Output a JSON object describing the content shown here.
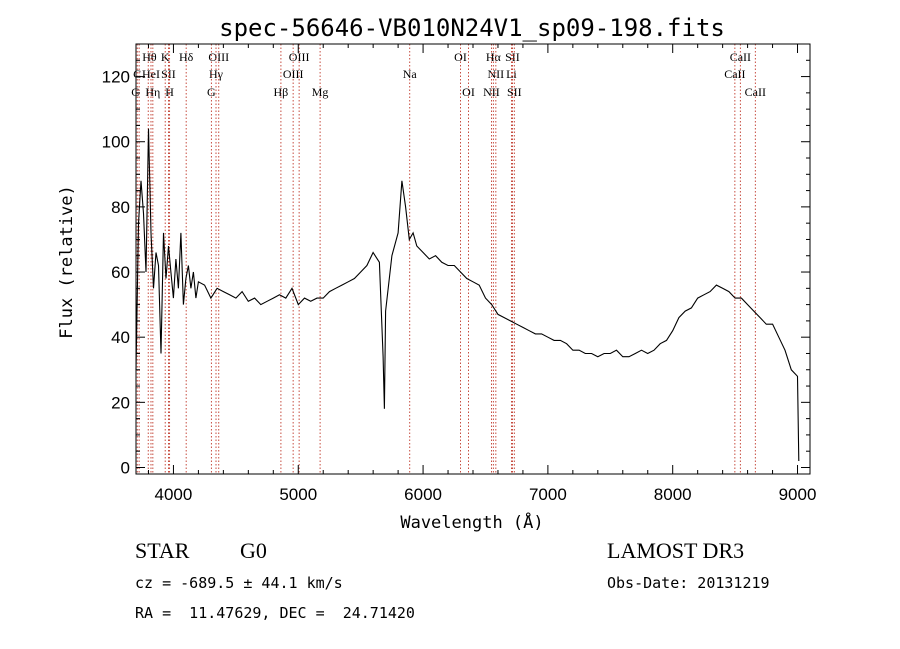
{
  "chart_data": {
    "type": "line",
    "title": "spec-56646-VB010N24V1_sp09-198.fits",
    "xlabel": "Wavelength (Å)",
    "ylabel": "Flux (relative)",
    "xlim": [
      3700,
      9100
    ],
    "ylim": [
      -2,
      130
    ],
    "x_ticks": [
      4000,
      5000,
      6000,
      7000,
      8000,
      9000
    ],
    "y_ticks": [
      0,
      20,
      40,
      60,
      80,
      100,
      120
    ],
    "series": [
      {
        "name": "spectrum",
        "x": [
          3700,
          3720,
          3740,
          3760,
          3780,
          3800,
          3820,
          3840,
          3860,
          3880,
          3900,
          3920,
          3940,
          3960,
          3980,
          4000,
          4020,
          4040,
          4060,
          4080,
          4100,
          4120,
          4140,
          4160,
          4180,
          4200,
          4250,
          4300,
          4350,
          4400,
          4450,
          4500,
          4550,
          4600,
          4650,
          4700,
          4750,
          4800,
          4850,
          4900,
          4950,
          5000,
          5050,
          5100,
          5150,
          5200,
          5250,
          5300,
          5350,
          5400,
          5450,
          5500,
          5550,
          5600,
          5650,
          5680,
          5690,
          5700,
          5750,
          5800,
          5830,
          5860,
          5890,
          5920,
          5950,
          6000,
          6050,
          6100,
          6150,
          6200,
          6250,
          6300,
          6350,
          6400,
          6450,
          6500,
          6550,
          6600,
          6650,
          6700,
          6750,
          6800,
          6850,
          6900,
          6950,
          7000,
          7050,
          7100,
          7150,
          7200,
          7250,
          7300,
          7350,
          7400,
          7450,
          7500,
          7550,
          7600,
          7650,
          7700,
          7750,
          7800,
          7850,
          7900,
          7950,
          8000,
          8050,
          8100,
          8150,
          8200,
          8250,
          8300,
          8350,
          8400,
          8450,
          8500,
          8550,
          8600,
          8650,
          8700,
          8750,
          8800,
          8850,
          8900,
          8950,
          9000,
          9010
        ],
        "y": [
          30,
          75,
          88,
          78,
          60,
          104,
          72,
          55,
          66,
          62,
          35,
          72,
          58,
          68,
          60,
          52,
          64,
          55,
          72,
          50,
          58,
          62,
          55,
          60,
          52,
          57,
          56,
          52,
          55,
          54,
          53,
          52,
          54,
          51,
          52,
          50,
          51,
          52,
          53,
          52,
          55,
          50,
          52,
          51,
          52,
          52,
          54,
          55,
          56,
          57,
          58,
          60,
          62,
          66,
          63,
          34,
          18,
          48,
          65,
          72,
          88,
          80,
          70,
          72,
          68,
          66,
          64,
          65,
          63,
          62,
          62,
          60,
          58,
          57,
          56,
          52,
          50,
          47,
          46,
          45,
          44,
          43,
          42,
          41,
          41,
          40,
          39,
          39,
          38,
          36,
          36,
          35,
          35,
          34,
          35,
          35,
          36,
          34,
          34,
          35,
          36,
          35,
          36,
          38,
          39,
          42,
          46,
          48,
          49,
          52,
          53,
          54,
          56,
          55,
          54,
          52,
          52,
          50,
          48,
          46,
          44,
          44,
          40,
          36,
          30,
          28,
          2
        ]
      }
    ],
    "line_markers": [
      {
        "label": "C",
        "x": 3710,
        "row": 2
      },
      {
        "label": "Hθ",
        "x": 3798,
        "row": 0
      },
      {
        "label": "K",
        "x": 3934,
        "row": 0
      },
      {
        "label": "Hδ",
        "x": 4102,
        "row": 0
      },
      {
        "label": "C",
        "x": 3725,
        "row": 3
      },
      {
        "label": "HeI",
        "x": 3820,
        "row": 1
      },
      {
        "label": "SII",
        "x": 3960,
        "row": 1
      },
      {
        "label": "Hη",
        "x": 3835,
        "row": 2
      },
      {
        "label": "H",
        "x": 3969,
        "row": 2
      },
      {
        "label": "OIII",
        "x": 4363,
        "row": 0
      },
      {
        "label": "Hγ",
        "x": 4341,
        "row": 1
      },
      {
        "label": "G",
        "x": 4304,
        "row": 2
      },
      {
        "label": "OIII",
        "x": 5007,
        "row": 0
      },
      {
        "label": "OIII",
        "x": 4959,
        "row": 1
      },
      {
        "label": "Hβ",
        "x": 4861,
        "row": 2
      },
      {
        "label": "Mg",
        "x": 5175,
        "row": 2
      },
      {
        "label": "Na",
        "x": 5893,
        "row": 1
      },
      {
        "label": "OI",
        "x": 6300,
        "row": 0
      },
      {
        "label": "OI",
        "x": 6364,
        "row": 2
      },
      {
        "label": "Hα",
        "x": 6563,
        "row": 0
      },
      {
        "label": "SII",
        "x": 6716,
        "row": 0
      },
      {
        "label": "NII",
        "x": 6583,
        "row": 1
      },
      {
        "label": "Li",
        "x": 6708,
        "row": 1
      },
      {
        "label": "NII",
        "x": 6548,
        "row": 2
      },
      {
        "label": "SII",
        "x": 6731,
        "row": 2
      },
      {
        "label": "CaII",
        "x": 8542,
        "row": 0
      },
      {
        "label": "CaII",
        "x": 8498,
        "row": 1
      },
      {
        "label": "CaII",
        "x": 8662,
        "row": 2
      }
    ]
  },
  "info": {
    "class_label": "STAR",
    "subclass": "G0",
    "survey": "LAMOST DR3",
    "cz": "cz = -689.5 ± 44.1 km/s",
    "obs_date": "Obs-Date: 20131219",
    "coords": "RA =  11.47629, DEC =  24.71420"
  }
}
